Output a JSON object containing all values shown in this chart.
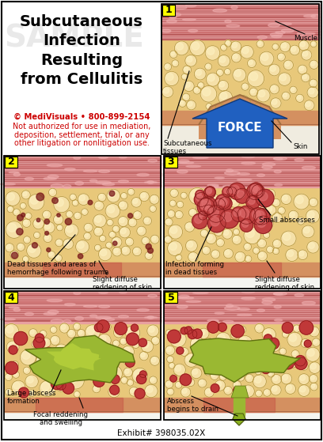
{
  "title_lines": [
    "Subcutaneous",
    "Infection",
    "Resulting",
    "from Cellulitis"
  ],
  "title_fontsize": 14,
  "title_color": "#000000",
  "copyright_line1": "© MediVisuals • 800-899-2154",
  "copyright_line2": "Not authorized for use in mediation,",
  "copyright_line3": "deposition, settlement, trial, or any",
  "copyright_line4": "other litigation or nonlitigation use.",
  "copyright_color": "#cc0000",
  "copyright_fontsize": 7.2,
  "bg_color": "#ffffff",
  "border_color": "#000000",
  "panel_label_bg": "#ffff00",
  "exhibit_text": "Exhibit# 398035.02X",
  "sample_text_color": "#c8c8c8",
  "muscle_colors": [
    "#d4787a",
    "#e8989a",
    "#c06070",
    "#cc8080",
    "#b86068",
    "#d89090"
  ],
  "fat_color": "#f0d090",
  "fat_globule_color": "#f5e0a0",
  "fat_outline_color": "#c8a850",
  "skin_color": "#d49060",
  "skin_redness_color": "#cc6050"
}
